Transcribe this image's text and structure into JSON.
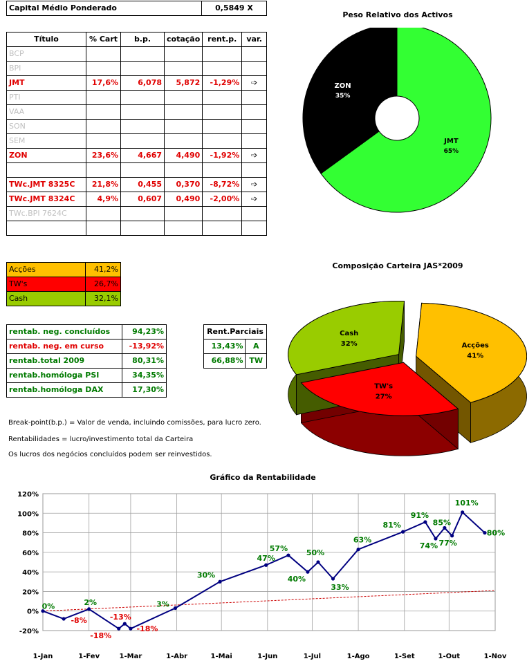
{
  "header": {
    "label": "Capital Médio Ponderado",
    "value": "0,5849 X"
  },
  "portfolio": {
    "columns": [
      "Título",
      "% Cart",
      "b.p.",
      "cotação",
      "rent.p.",
      "var."
    ],
    "rows": [
      {
        "name": "BCP",
        "active": false,
        "pct": "",
        "bp": "",
        "cot": "",
        "rent": "",
        "var": ""
      },
      {
        "name": "BPI",
        "active": false,
        "pct": "",
        "bp": "",
        "cot": "",
        "rent": "",
        "var": ""
      },
      {
        "name": "JMT",
        "active": true,
        "pct": "17,6%",
        "bp": "6,078",
        "cot": "5,872",
        "rent": "-1,29%",
        "var": "➩"
      },
      {
        "name": "PTI",
        "active": false,
        "pct": "",
        "bp": "",
        "cot": "",
        "rent": "",
        "var": ""
      },
      {
        "name": "VAA",
        "active": false,
        "pct": "",
        "bp": "",
        "cot": "",
        "rent": "",
        "var": ""
      },
      {
        "name": "SON",
        "active": false,
        "pct": "",
        "bp": "",
        "cot": "",
        "rent": "",
        "var": ""
      },
      {
        "name": "SEM",
        "active": false,
        "pct": "",
        "bp": "",
        "cot": "",
        "rent": "",
        "var": ""
      },
      {
        "name": "ZON",
        "active": true,
        "pct": "23,6%",
        "bp": "4,667",
        "cot": "4,490",
        "rent": "-1,92%",
        "var": "➩"
      },
      {
        "name": "",
        "active": false,
        "pct": "",
        "bp": "",
        "cot": "",
        "rent": "",
        "var": ""
      },
      {
        "name": "TWc.JMT 8325C",
        "active": true,
        "pct": "21,8%",
        "bp": "0,455",
        "cot": "0,370",
        "rent": "-8,72%",
        "var": "➩"
      },
      {
        "name": "TWc.JMT 8324C",
        "active": true,
        "pct": "4,9%",
        "bp": "0,607",
        "cot": "0,490",
        "rent": "-2,00%",
        "var": "➩"
      },
      {
        "name": "TWc.BPI 7624C",
        "active": false,
        "pct": "",
        "bp": "",
        "cot": "",
        "rent": "",
        "var": ""
      },
      {
        "name": "",
        "active": false,
        "pct": "",
        "bp": "",
        "cot": "",
        "rent": "",
        "var": ""
      }
    ]
  },
  "composition": [
    {
      "label": "Acções",
      "value": "41,2%",
      "color": "#ffc000"
    },
    {
      "label": "TW's",
      "value": "26,7%",
      "color": "#ff0000"
    },
    {
      "label": "Cash",
      "value": "32,1%",
      "color": "#99cc00"
    }
  ],
  "rentab": [
    {
      "label": "rentab. neg. concluídos",
      "value": "94,23%",
      "neg": false
    },
    {
      "label": "rentab. neg. em curso",
      "value": "-13,92%",
      "neg": true
    },
    {
      "label": "rentab.total 2009",
      "value": "80,31%",
      "neg": false
    },
    {
      "label": "rentab.homóloga PSI",
      "value": "34,35%",
      "neg": false
    },
    {
      "label": "rentab.homóloga DAX",
      "value": "17,30%",
      "neg": false
    }
  ],
  "partial": {
    "header": "Rent.Parciais",
    "rows": [
      {
        "value": "13,43%",
        "label": "A"
      },
      {
        "value": "66,88%",
        "label": "TW"
      }
    ]
  },
  "notes": [
    "Break-point(b.p.) = Valor de venda, incluindo comissões, para lucro zero.",
    "Rentabilidades = lucro/investimento total da Carteira",
    "Os lucros dos negócios concluídos podem ser reinvestidos."
  ],
  "chart_data": [
    {
      "type": "pie",
      "title": "Peso Relativo dos Activos",
      "slices": [
        {
          "label": "JMT",
          "value": 65,
          "display": "65%",
          "color": "#33ff33"
        },
        {
          "label": "ZON",
          "value": 35,
          "display": "35%",
          "color": "#000000"
        }
      ]
    },
    {
      "type": "pie",
      "title": "Composição Carteira JAS*2009",
      "slices": [
        {
          "label": "Acções",
          "value": 41,
          "display": "41%",
          "color": "#ffc000"
        },
        {
          "label": "TW's",
          "value": 27,
          "display": "27%",
          "color": "#ff0000"
        },
        {
          "label": "Cash",
          "value": 32,
          "display": "32%",
          "color": "#99cc00"
        }
      ]
    },
    {
      "type": "line",
      "title": "Gráfico da Rentabilidade",
      "ylim": [
        -20,
        120
      ],
      "yticks": [
        "-20%",
        "0%",
        "20%",
        "40%",
        "60%",
        "80%",
        "100%",
        "120%"
      ],
      "xticks": [
        "1-Jan",
        "1-Fev",
        "1-Mar",
        "1-Abr",
        "1-Mai",
        "1-Jun",
        "1-Jul",
        "1-Ago",
        "1-Set",
        "1-Out",
        "1-Nov"
      ],
      "grid": true,
      "series": [
        {
          "color": "#000080",
          "points": [
            {
              "x": "2009-01-01",
              "y": 0,
              "label": "0%"
            },
            {
              "x": "2009-01-15",
              "y": -8,
              "label": "-8%"
            },
            {
              "x": "2009-02-01",
              "y": 2,
              "label": "2%"
            },
            {
              "x": "2009-02-21",
              "y": -18,
              "label": "-18%"
            },
            {
              "x": "2009-02-25",
              "y": -13,
              "label": "-13%"
            },
            {
              "x": "2009-03-01",
              "y": -18,
              "label": "-18%"
            },
            {
              "x": "2009-03-31",
              "y": 3,
              "label": "3%"
            },
            {
              "x": "2009-04-30",
              "y": 30,
              "label": "30%"
            },
            {
              "x": "2009-05-31",
              "y": 47,
              "label": "47%"
            },
            {
              "x": "2009-06-15",
              "y": 57,
              "label": "57%"
            },
            {
              "x": "2009-06-28",
              "y": 40,
              "label": "40%"
            },
            {
              "x": "2009-07-05",
              "y": 50,
              "label": "50%"
            },
            {
              "x": "2009-07-15",
              "y": 33,
              "label": "33%"
            },
            {
              "x": "2009-08-01",
              "y": 63,
              "label": "63%"
            },
            {
              "x": "2009-08-31",
              "y": 81,
              "label": "81%"
            },
            {
              "x": "2009-09-15",
              "y": 91,
              "label": "91%"
            },
            {
              "x": "2009-09-22",
              "y": 74,
              "label": "74%"
            },
            {
              "x": "2009-09-28",
              "y": 85,
              "label": "85%"
            },
            {
              "x": "2009-10-03",
              "y": 77,
              "label": "77%"
            },
            {
              "x": "2009-10-10",
              "y": 101,
              "label": "101%"
            },
            {
              "x": "2009-10-25",
              "y": 80,
              "label": "80%"
            }
          ]
        },
        {
          "color": "#cc0000",
          "dashed": true,
          "points": [
            {
              "x": "2009-01-01",
              "y": 0
            },
            {
              "x": "2009-11-01",
              "y": 21
            }
          ]
        }
      ]
    }
  ]
}
